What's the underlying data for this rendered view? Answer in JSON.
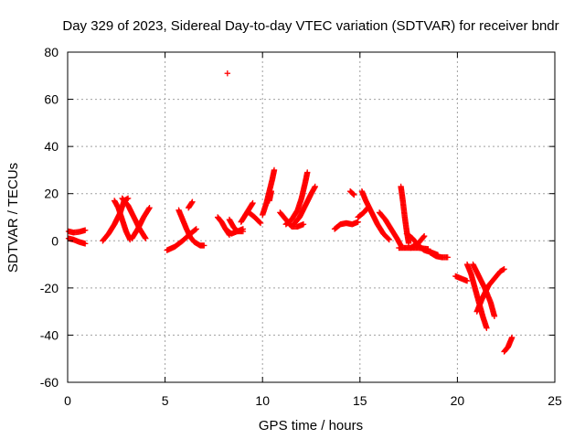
{
  "chart_data": {
    "type": "scatter",
    "title": "Day 329 of 2023, Sidereal Day-to-day VTEC variation (SDTVAR) for receiver bndr",
    "xlabel": "GPS time / hours",
    "ylabel": "SDTVAR / TECUs",
    "xlim": [
      0,
      25
    ],
    "ylim": [
      -60,
      80
    ],
    "xticks": [
      0,
      5,
      10,
      15,
      20,
      25
    ],
    "yticks": [
      -60,
      -40,
      -20,
      0,
      20,
      40,
      60,
      80
    ],
    "grid": true,
    "marker": "+",
    "color": "#ff0000",
    "series": [
      {
        "segments": [
          [
            [
              0.05,
              4
            ],
            [
              0.3,
              3.5
            ],
            [
              0.6,
              3.8
            ],
            [
              0.9,
              4.5
            ]
          ],
          [
            [
              0.05,
              1
            ],
            [
              0.3,
              0.5
            ],
            [
              0.6,
              -0.5
            ],
            [
              0.9,
              -1.2
            ]
          ],
          [
            [
              1.8,
              0
            ],
            [
              2.1,
              3
            ],
            [
              2.4,
              7
            ],
            [
              2.7,
              12
            ],
            [
              2.9,
              17
            ],
            [
              3.1,
              18
            ]
          ],
          [
            [
              2.4,
              17
            ],
            [
              2.6,
              14
            ],
            [
              2.8,
              9
            ],
            [
              3.0,
              4
            ],
            [
              3.2,
              0.5
            ]
          ],
          [
            [
              2.8,
              18
            ],
            [
              3.1,
              15
            ],
            [
              3.4,
              10
            ],
            [
              3.7,
              5
            ],
            [
              4.0,
              1
            ]
          ],
          [
            [
              3.3,
              1
            ],
            [
              3.6,
              5
            ],
            [
              3.9,
              10
            ],
            [
              4.2,
              14
            ]
          ],
          [
            [
              5.1,
              -4
            ],
            [
              5.5,
              -2.5
            ],
            [
              5.9,
              0
            ],
            [
              6.3,
              3
            ],
            [
              6.6,
              5
            ]
          ],
          [
            [
              5.7,
              13
            ],
            [
              5.9,
              9
            ],
            [
              6.1,
              5
            ],
            [
              6.3,
              1.5
            ],
            [
              6.5,
              -0.5
            ],
            [
              6.8,
              -2
            ],
            [
              7.0,
              -2
            ]
          ],
          [
            [
              6.2,
              14
            ],
            [
              6.4,
              16.5
            ]
          ],
          [
            [
              7.7,
              10
            ],
            [
              7.9,
              8
            ],
            [
              8.1,
              5
            ],
            [
              8.3,
              2.5
            ]
          ],
          [
            [
              8.3,
              9
            ],
            [
              8.5,
              6
            ],
            [
              8.7,
              4
            ],
            [
              9.0,
              4
            ]
          ],
          [
            [
              8.1,
              5
            ],
            [
              8.4,
              3
            ],
            [
              8.7,
              4
            ],
            [
              9.0,
              5
            ]
          ],
          [
            [
              8.9,
              8
            ],
            [
              9.2,
              12
            ],
            [
              9.5,
              16
            ]
          ],
          [
            [
              9.3,
              12
            ],
            [
              9.6,
              10
            ],
            [
              9.9,
              7.5
            ]
          ],
          [
            [
              10.0,
              11
            ],
            [
              10.2,
              16
            ],
            [
              10.35,
              21
            ],
            [
              10.5,
              26
            ],
            [
              10.6,
              30
            ]
          ],
          [
            [
              10.35,
              17
            ],
            [
              10.45,
              21
            ]
          ],
          [
            [
              10.9,
              12
            ],
            [
              11.2,
              9
            ],
            [
              11.5,
              6
            ],
            [
              11.8,
              6
            ],
            [
              12.1,
              7
            ]
          ],
          [
            [
              11.2,
              7
            ],
            [
              11.5,
              9
            ],
            [
              11.8,
              13
            ],
            [
              12.0,
              18
            ],
            [
              12.2,
              25
            ],
            [
              12.3,
              29
            ]
          ],
          [
            [
              11.6,
              7
            ],
            [
              11.9,
              10
            ],
            [
              12.2,
              15
            ],
            [
              12.5,
              20
            ],
            [
              12.7,
              23
            ]
          ],
          [
            [
              13.7,
              5
            ],
            [
              14.0,
              7
            ],
            [
              14.3,
              7.5
            ],
            [
              14.6,
              7
            ],
            [
              14.9,
              8
            ]
          ],
          [
            [
              14.5,
              21
            ],
            [
              14.7,
              19.5
            ]
          ],
          [
            [
              15.1,
              21
            ],
            [
              15.3,
              17
            ],
            [
              15.6,
              12
            ],
            [
              15.9,
              7
            ],
            [
              16.2,
              3
            ],
            [
              16.5,
              0.5
            ]
          ],
          [
            [
              14.9,
              10
            ],
            [
              15.2,
              12
            ],
            [
              15.4,
              14
            ]
          ],
          [
            [
              16.0,
              12
            ],
            [
              16.3,
              9
            ],
            [
              16.6,
              5
            ],
            [
              16.9,
              1
            ],
            [
              17.1,
              -2
            ]
          ],
          [
            [
              17.1,
              23
            ],
            [
              17.2,
              17
            ],
            [
              17.3,
              10
            ],
            [
              17.4,
              4
            ],
            [
              17.5,
              -1
            ]
          ],
          [
            [
              17.0,
              -3
            ],
            [
              17.5,
              -3
            ],
            [
              18.0,
              -3
            ],
            [
              18.5,
              -3.5
            ]
          ],
          [
            [
              17.4,
              3
            ],
            [
              17.7,
              1
            ],
            [
              18.0,
              -2
            ],
            [
              18.3,
              -4
            ],
            [
              18.7,
              -5
            ],
            [
              19.0,
              -6
            ]
          ],
          [
            [
              17.6,
              -3
            ],
            [
              18.0,
              -1
            ],
            [
              18.3,
              2
            ]
          ],
          [
            [
              18.6,
              -5
            ],
            [
              18.9,
              -6.5
            ],
            [
              19.2,
              -7
            ],
            [
              19.5,
              -7
            ]
          ],
          [
            [
              19.9,
              -15
            ],
            [
              20.2,
              -16
            ],
            [
              20.5,
              -17
            ]
          ],
          [
            [
              20.5,
              -10
            ],
            [
              20.7,
              -14
            ],
            [
              20.9,
              -20
            ],
            [
              21.1,
              -26
            ],
            [
              21.3,
              -32
            ],
            [
              21.5,
              -37
            ]
          ],
          [
            [
              20.8,
              -10
            ],
            [
              21.1,
              -15
            ],
            [
              21.4,
              -20
            ],
            [
              21.7,
              -26
            ],
            [
              21.9,
              -32
            ]
          ],
          [
            [
              21.0,
              -30
            ],
            [
              21.3,
              -24
            ],
            [
              21.6,
              -19
            ],
            [
              21.9,
              -16
            ],
            [
              22.2,
              -13
            ],
            [
              22.4,
              -12
            ]
          ],
          [
            [
              22.4,
              -47
            ],
            [
              22.6,
              -45
            ],
            [
              22.8,
              -41
            ]
          ]
        ],
        "points": [
          [
            8.2,
            71
          ]
        ]
      }
    ]
  }
}
